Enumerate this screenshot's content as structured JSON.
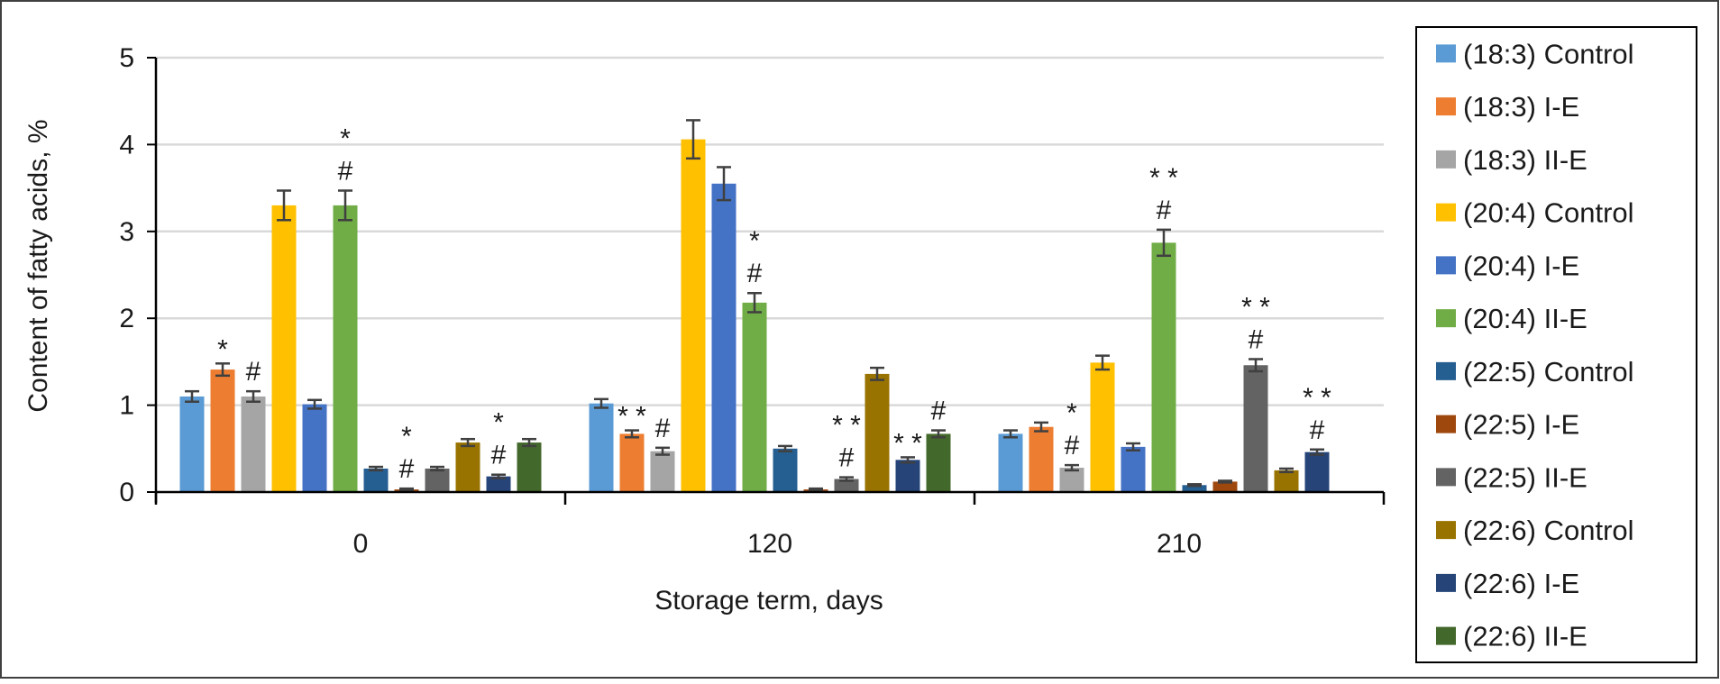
{
  "chart_data": {
    "type": "bar",
    "title": "",
    "xlabel": "Storage term, days",
    "ylabel": "Content of fatty acids, %",
    "ylim": [
      0,
      5
    ],
    "yticks": [
      0,
      1,
      2,
      3,
      4,
      5
    ],
    "grid": true,
    "legend_position": "right",
    "categories": [
      "0",
      "120",
      "210"
    ],
    "series": [
      {
        "name": "(18:3) Control",
        "color": "#5B9BD5",
        "values": [
          1.1,
          1.02,
          0.67
        ],
        "errors": [
          0.06,
          0.05,
          0.04
        ],
        "annotations": [
          "",
          "",
          ""
        ]
      },
      {
        "name": "(18:3) I-E",
        "color": "#ED7D31",
        "values": [
          1.41,
          0.67,
          0.75
        ],
        "errors": [
          0.07,
          0.04,
          0.05
        ],
        "annotations": [
          "*",
          "* *",
          ""
        ]
      },
      {
        "name": "(18:3) II-E",
        "color": "#A5A5A5",
        "values": [
          1.1,
          0.47,
          0.28
        ],
        "errors": [
          0.06,
          0.04,
          0.03
        ],
        "annotations": [
          "#",
          "#",
          "* #"
        ]
      },
      {
        "name": "(20:4) Control",
        "color": "#FFC000",
        "values": [
          3.3,
          4.06,
          1.49
        ],
        "errors": [
          0.17,
          0.22,
          0.08
        ],
        "annotations": [
          "",
          "",
          ""
        ]
      },
      {
        "name": "(20:4) I-E",
        "color": "#4472C4",
        "values": [
          1.01,
          3.55,
          0.52
        ],
        "errors": [
          0.05,
          0.19,
          0.04
        ],
        "annotations": [
          "",
          "",
          ""
        ]
      },
      {
        "name": "(20:4) II-E",
        "color": "#70AD47",
        "values": [
          3.3,
          2.18,
          2.87
        ],
        "errors": [
          0.17,
          0.11,
          0.15
        ],
        "annotations": [
          "* #",
          "* #",
          "* * #"
        ]
      },
      {
        "name": "(22:5) Control",
        "color": "#255E91",
        "values": [
          0.27,
          0.5,
          0.08
        ],
        "errors": [
          0.02,
          0.03,
          0.01
        ],
        "annotations": [
          "",
          "",
          ""
        ]
      },
      {
        "name": "(22:5) I-E",
        "color": "#9E480E",
        "values": [
          0.03,
          0.03,
          0.12
        ],
        "errors": [
          0.01,
          0.01,
          0.01
        ],
        "annotations": [
          "* #",
          "",
          ""
        ]
      },
      {
        "name": "(22:5) II-E",
        "color": "#636363",
        "values": [
          0.27,
          0.15,
          1.46
        ],
        "errors": [
          0.02,
          0.02,
          0.07
        ],
        "annotations": [
          "",
          "* * #",
          "* * #"
        ]
      },
      {
        "name": "(22:6) Control",
        "color": "#997300",
        "values": [
          0.57,
          1.36,
          0.25
        ],
        "errors": [
          0.04,
          0.07,
          0.02
        ],
        "annotations": [
          "",
          "",
          ""
        ]
      },
      {
        "name": "(22:6) I-E",
        "color": "#264478",
        "values": [
          0.18,
          0.37,
          0.46
        ],
        "errors": [
          0.02,
          0.03,
          0.03
        ],
        "annotations": [
          "* #",
          "* *",
          "* * #"
        ]
      },
      {
        "name": "(22:6) II-E",
        "color": "#43682B",
        "values": [
          0.57,
          0.67,
          0.0
        ],
        "errors": [
          0.04,
          0.04,
          0.0
        ],
        "annotations": [
          "",
          "#",
          ""
        ]
      }
    ]
  }
}
